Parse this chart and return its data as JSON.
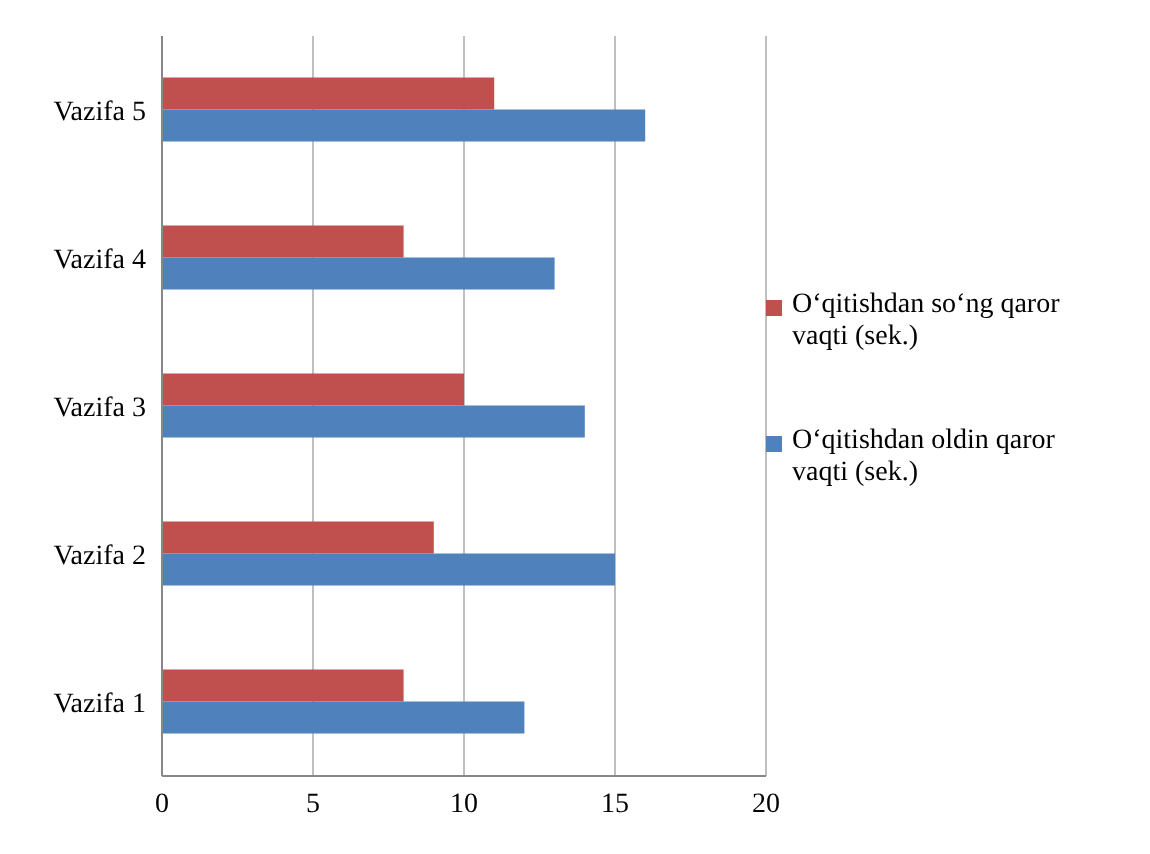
{
  "chart_data": {
    "type": "bar",
    "orientation": "horizontal",
    "categories": [
      "Vazifa 5",
      "Vazifa 4",
      "Vazifa 3",
      "Vazifa 2",
      "Vazifa 1"
    ],
    "series": [
      {
        "name": "O‘qitishdan so‘ng qaror vaqti (sek.)",
        "color": "#c0504d",
        "values": [
          11,
          8,
          10,
          9,
          8
        ]
      },
      {
        "name": "O‘qitishdan oldin qaror vaqti (sek.)",
        "color": "#4f81bd",
        "values": [
          16,
          13,
          14,
          15,
          12
        ]
      }
    ],
    "xlim": [
      0,
      20
    ],
    "xticks": [
      0,
      5,
      10,
      15,
      20
    ],
    "grid": "x",
    "legend": "right"
  }
}
